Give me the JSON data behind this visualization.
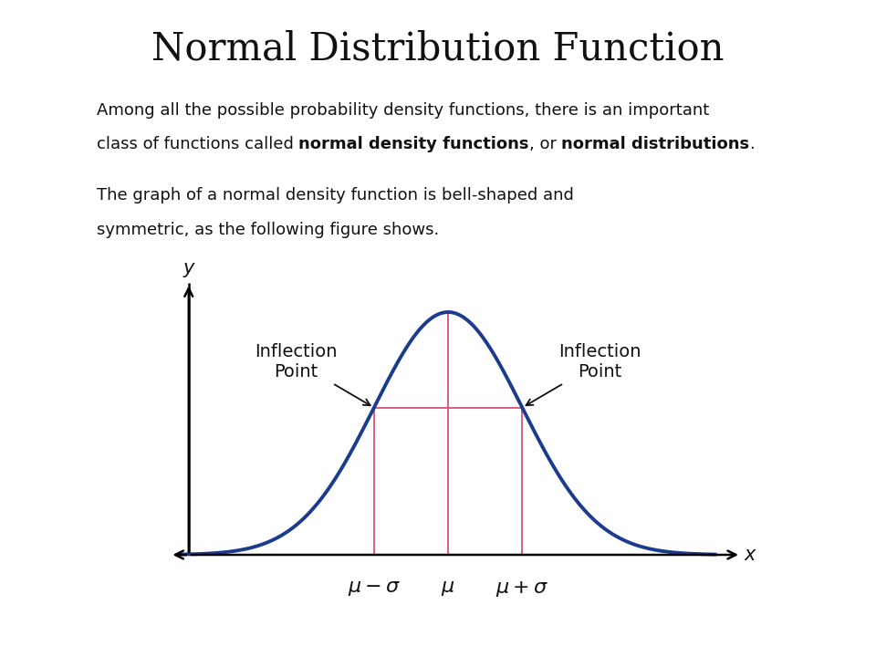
{
  "title": "Normal Distribution Function",
  "title_fontsize": 30,
  "title_font": "DejaVu Serif",
  "bg_color": "#ffffff",
  "paragraph1_line1": "Among all the possible probability density functions, there is an important",
  "paragraph1_line2_pre": "class of functions called ",
  "paragraph1_line2_bold1": "normal density functions",
  "paragraph1_line2_mid": ", or ",
  "paragraph1_line2_bold2": "normal distributions",
  "paragraph1_line2_end": ".",
  "paragraph2_line1": "The graph of a normal density function is bell-shaped and",
  "paragraph2_line2": "symmetric, as the following figure shows.",
  "text_fontsize": 13,
  "text_font": "DejaVu Sans",
  "curve_color": "#1b3b8c",
  "curve_linewidth": 2.8,
  "pink_color": "#d94f7e",
  "pink_linewidth": 1.3,
  "axis_color": "#000000",
  "mu": 0,
  "sigma": 1,
  "inflection_fontsize": 14,
  "axis_label_fontsize": 15,
  "x_label": "x",
  "y_label": "y",
  "tick_fontsize": 16
}
